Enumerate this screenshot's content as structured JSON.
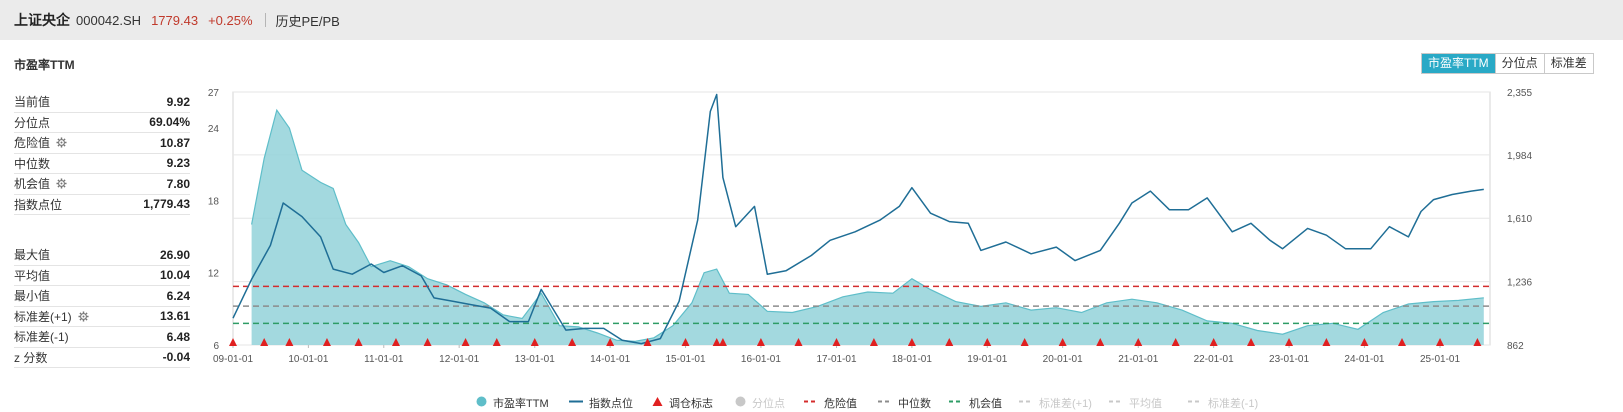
{
  "header": {
    "name": "上证央企",
    "code": "000042.SH",
    "price": "1779.43",
    "change": "+0.25%",
    "history_link": "历史PE/PB"
  },
  "chart_title": "市盈率TTM",
  "view_buttons": [
    {
      "label": "市盈率TTM",
      "active": true
    },
    {
      "label": "分位点",
      "active": false
    },
    {
      "label": "标准差",
      "active": false
    }
  ],
  "stats_top": [
    {
      "label": "当前值",
      "value": "9.92",
      "gear": false
    },
    {
      "label": "分位点",
      "value": "69.04%",
      "gear": false
    },
    {
      "label": "危险值",
      "value": "10.87",
      "gear": true
    },
    {
      "label": "中位数",
      "value": "9.23",
      "gear": false
    },
    {
      "label": "机会值",
      "value": "7.80",
      "gear": true
    },
    {
      "label": "指数点位",
      "value": "1,779.43",
      "gear": false
    }
  ],
  "stats_bottom": [
    {
      "label": "最大值",
      "value": "26.90",
      "gear": false
    },
    {
      "label": "平均值",
      "value": "10.04",
      "gear": false
    },
    {
      "label": "最小值",
      "value": "6.24",
      "gear": false
    },
    {
      "label": "标准差(+1)",
      "value": "13.61",
      "gear": true
    },
    {
      "label": "标准差(-1)",
      "value": "6.48",
      "gear": false
    },
    {
      "label": "z 分数",
      "value": "-0.04",
      "gear": false
    }
  ],
  "colors": {
    "pe_fill": "#93d2d9",
    "pe_line": "#5fbec9",
    "index_line": "#1f6e96",
    "danger": "#d42c2c",
    "median": "#8c8c8c",
    "opportunity": "#2e9c66",
    "marker": "#e02020",
    "active_button": "#29a9c6",
    "disabled": "#c8c8c8"
  },
  "legend": [
    {
      "label": "市盈率TTM",
      "symbol": "circle",
      "color": "#5fbec9",
      "enabled": true
    },
    {
      "label": "指数点位",
      "symbol": "line",
      "color": "#1f6e96",
      "enabled": true
    },
    {
      "label": "调仓标志",
      "symbol": "triangle",
      "color": "#e02020",
      "enabled": true
    },
    {
      "label": "分位点",
      "symbol": "circle",
      "color": "#c8c8c8",
      "enabled": false
    },
    {
      "label": "危险值",
      "symbol": "dash",
      "color": "#d42c2c",
      "enabled": true
    },
    {
      "label": "中位数",
      "symbol": "dash",
      "color": "#8c8c8c",
      "enabled": true
    },
    {
      "label": "机会值",
      "symbol": "dash",
      "color": "#2e9c66",
      "enabled": true
    },
    {
      "label": "标准差(+1)",
      "symbol": "dash",
      "color": "#c8c8c8",
      "enabled": false
    },
    {
      "label": "平均值",
      "symbol": "dash",
      "color": "#c8c8c8",
      "enabled": false
    },
    {
      "label": "标准差(-1)",
      "symbol": "dash",
      "color": "#c8c8c8",
      "enabled": false
    }
  ],
  "chart_data": {
    "type": "area",
    "x_start": "2009-01-01",
    "x_end": "2025-08-31",
    "x_tick_labels": [
      "09-01-01",
      "10-01-01",
      "11-01-01",
      "12-01-01",
      "13-01-01",
      "14-01-01",
      "15-01-01",
      "16-01-01",
      "17-01-01",
      "18-01-01",
      "19-01-01",
      "20-01-01",
      "21-01-01",
      "22-01-01",
      "23-01-01",
      "24-01-01",
      "25-01-01"
    ],
    "y_left": {
      "ticks": [
        6,
        12,
        18,
        24,
        27
      ],
      "range": [
        6,
        27
      ]
    },
    "y_right": {
      "ticks": [
        862,
        1236,
        1610,
        1984,
        2355
      ],
      "range": [
        862,
        2355
      ]
    },
    "reference_lines": [
      {
        "name": "危险值",
        "value": 10.87
      },
      {
        "name": "中位数",
        "value": 9.23
      },
      {
        "name": "机会值",
        "value": 7.8
      }
    ],
    "series": [
      {
        "name": "市盈率TTM",
        "axis": "left",
        "x": [
          "2009-04",
          "2009-06",
          "2009-08",
          "2009-10",
          "2009-12",
          "2010-03",
          "2010-05",
          "2010-07",
          "2010-09",
          "2010-11",
          "2011-02",
          "2011-05",
          "2011-08",
          "2011-11",
          "2012-02",
          "2012-05",
          "2012-08",
          "2012-11",
          "2013-02",
          "2013-05",
          "2013-08",
          "2013-11",
          "2014-02",
          "2014-05",
          "2014-08",
          "2014-11",
          "2015-02",
          "2015-04",
          "2015-06",
          "2015-08",
          "2015-11",
          "2016-02",
          "2016-06",
          "2016-10",
          "2017-02",
          "2017-06",
          "2017-10",
          "2018-01",
          "2018-04",
          "2018-08",
          "2018-12",
          "2019-04",
          "2019-08",
          "2019-12",
          "2020-04",
          "2020-08",
          "2020-12",
          "2021-04",
          "2021-08",
          "2021-12",
          "2022-04",
          "2022-08",
          "2022-12",
          "2023-04",
          "2023-08",
          "2023-12",
          "2024-04",
          "2024-08",
          "2024-12",
          "2025-04",
          "2025-08"
        ],
        "values": [
          16,
          21.5,
          25.5,
          24,
          20.5,
          19.5,
          19,
          16,
          14.5,
          12.5,
          13,
          12.5,
          11.5,
          11,
          10.2,
          9.5,
          8.5,
          8.2,
          10.3,
          7.6,
          7.5,
          7,
          6.4,
          6.3,
          6.6,
          7.6,
          9.5,
          12,
          12.3,
          10.3,
          10.2,
          8.8,
          8.7,
          9.2,
          10,
          10.4,
          10.3,
          11.5,
          10.6,
          9.6,
          9.2,
          9.5,
          8.9,
          9.1,
          8.7,
          9.5,
          9.8,
          9.5,
          8.9,
          8,
          7.8,
          7.2,
          6.9,
          7.6,
          7.8,
          7.3,
          8.7,
          9.4,
          9.6,
          9.7,
          9.92
        ]
      },
      {
        "name": "指数点位",
        "axis": "right",
        "x": [
          "2009-01",
          "2009-04",
          "2009-07",
          "2009-09",
          "2009-12",
          "2010-03",
          "2010-05",
          "2010-08",
          "2010-11",
          "2011-01",
          "2011-04",
          "2011-07",
          "2011-09",
          "2011-12",
          "2012-03",
          "2012-06",
          "2012-09",
          "2012-12",
          "2013-02",
          "2013-06",
          "2013-09",
          "2013-12",
          "2014-03",
          "2014-06",
          "2014-09",
          "2014-12",
          "2015-03",
          "2015-05",
          "2015-06",
          "2015-07",
          "2015-09",
          "2015-12",
          "2016-02",
          "2016-05",
          "2016-09",
          "2016-12",
          "2017-04",
          "2017-08",
          "2017-11",
          "2018-01",
          "2018-04",
          "2018-07",
          "2018-10",
          "2018-12",
          "2019-04",
          "2019-08",
          "2019-12",
          "2020-03",
          "2020-07",
          "2020-10",
          "2020-12",
          "2021-03",
          "2021-06",
          "2021-09",
          "2021-12",
          "2022-04",
          "2022-07",
          "2022-10",
          "2022-12",
          "2023-04",
          "2023-07",
          "2023-10",
          "2024-02",
          "2024-05",
          "2024-08",
          "2024-10",
          "2024-12",
          "2025-03",
          "2025-06",
          "2025-08"
        ],
        "values": [
          1020,
          1250,
          1450,
          1700,
          1620,
          1500,
          1310,
          1280,
          1340,
          1290,
          1330,
          1270,
          1140,
          1120,
          1100,
          1080,
          1000,
          1000,
          1190,
          950,
          960,
          960,
          890,
          870,
          900,
          1120,
          1600,
          2240,
          2340,
          1850,
          1560,
          1680,
          1280,
          1300,
          1390,
          1480,
          1530,
          1600,
          1680,
          1790,
          1640,
          1590,
          1580,
          1420,
          1470,
          1400,
          1440,
          1360,
          1420,
          1580,
          1700,
          1770,
          1660,
          1660,
          1730,
          1530,
          1580,
          1480,
          1430,
          1550,
          1510,
          1430,
          1430,
          1560,
          1500,
          1650,
          1720,
          1750,
          1770,
          1780
        ]
      }
    ],
    "rebalance_markers": [
      "2009-01",
      "2009-06",
      "2009-10",
      "2010-04",
      "2010-09",
      "2011-03",
      "2011-08",
      "2012-02",
      "2012-07",
      "2013-01",
      "2013-07",
      "2014-01",
      "2014-07",
      "2015-01",
      "2015-06",
      "2015-07",
      "2016-01",
      "2016-07",
      "2017-01",
      "2017-07",
      "2018-01",
      "2018-07",
      "2019-01",
      "2019-07",
      "2020-01",
      "2020-07",
      "2021-01",
      "2021-07",
      "2022-01",
      "2022-07",
      "2023-01",
      "2023-07",
      "2024-01",
      "2024-07",
      "2025-01",
      "2025-07"
    ],
    "title": "市盈率TTM",
    "grid": true,
    "legend_position": "bottom"
  }
}
